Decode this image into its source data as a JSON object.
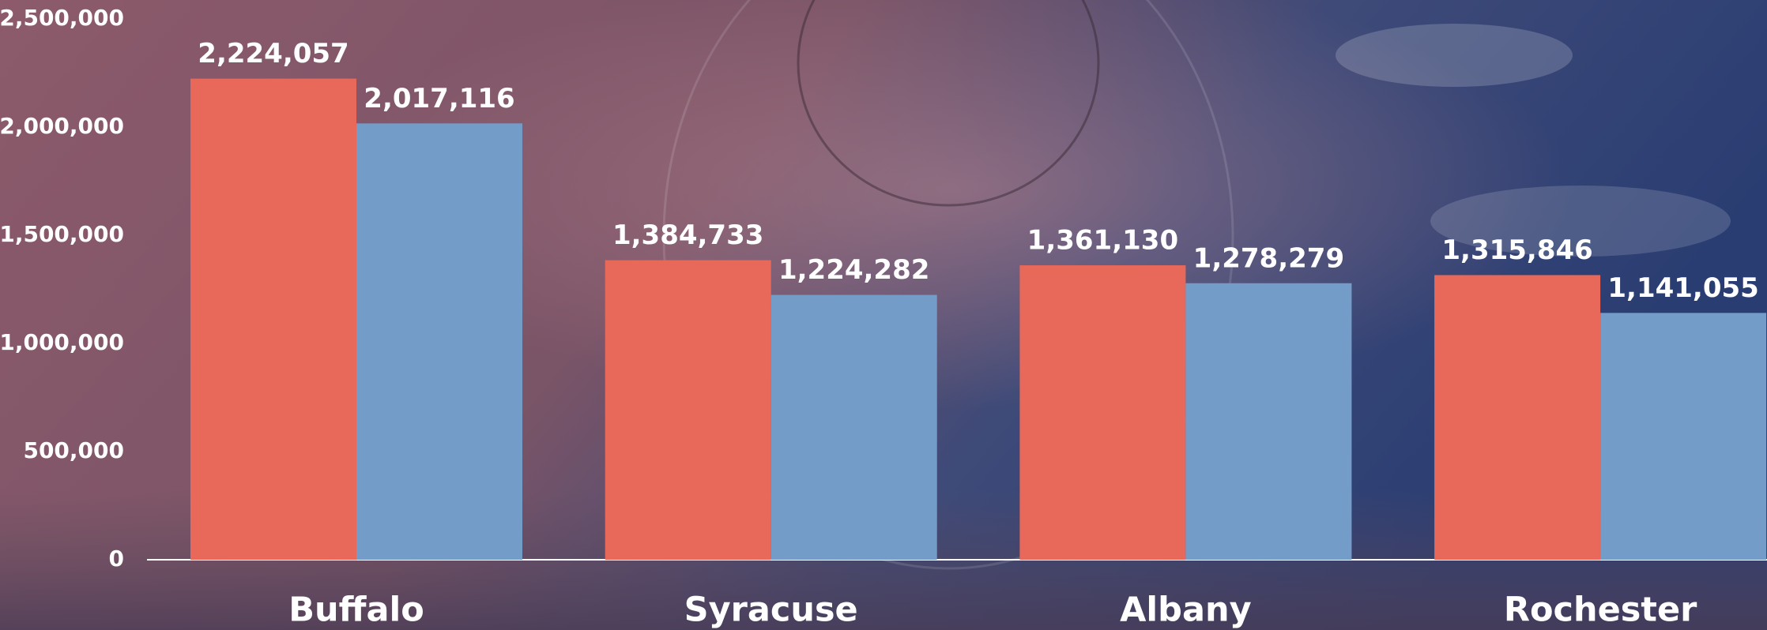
{
  "chart_data": {
    "type": "bar",
    "categories": [
      "Buffalo",
      "Syracuse",
      "Albany",
      "Rochester"
    ],
    "series": [
      {
        "color": "#e8695a",
        "values": [
          2224057,
          1384733,
          1361130,
          1315846
        ],
        "value_labels": [
          "2,224,057",
          "1,384,733",
          "1,361,130",
          "1,315,846"
        ]
      },
      {
        "color": "#749cc8",
        "values": [
          2017116,
          1224282,
          1278279,
          1141055
        ],
        "value_labels": [
          "2,017,116",
          "1,224,282",
          "1,278,279",
          "1,141,055"
        ]
      }
    ],
    "ylim": [
      0,
      2500000
    ],
    "yticks": [
      0,
      {
        "value": 500000,
        "label": "500,000"
      },
      {
        "value": 1000000,
        "label": "1,000,000"
      },
      {
        "value": 1500000,
        "label": "1,500,000"
      },
      {
        "value": 2000000,
        "label": "2,000,000"
      },
      {
        "value": 2500000,
        "label": "2,500,000"
      }
    ],
    "grid": false
  }
}
